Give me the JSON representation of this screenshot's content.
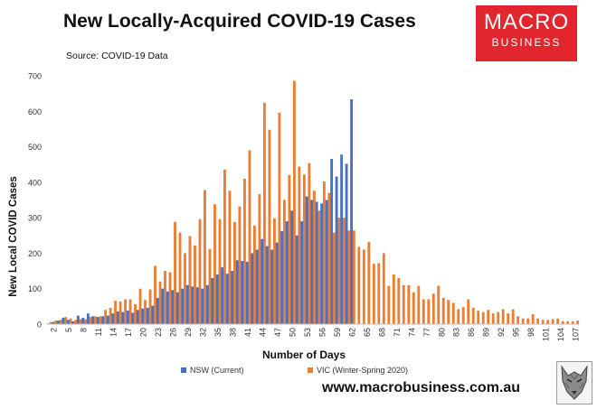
{
  "header": {
    "title": "New Locally-Acquired COVID-19 Cases",
    "source": "Source: COVID-19 Data"
  },
  "logo": {
    "line1": "MACRO",
    "line2": "BUSINESS"
  },
  "footer": {
    "url": "www.macrobusiness.com.au"
  },
  "colors": {
    "nsw": "#4472c4",
    "vic": "#ed7d31",
    "logo_bg": "#e1262d"
  },
  "chart_data": {
    "type": "bar",
    "title": "New Locally-Acquired COVID-19 Cases",
    "xlabel": "Number of Days",
    "ylabel": "New Local COVID Cases",
    "ylim": [
      0,
      700
    ],
    "yticks": [
      0,
      100,
      200,
      300,
      400,
      500,
      600,
      700
    ],
    "xlim": [
      1,
      107
    ],
    "xticks": [
      2,
      5,
      8,
      11,
      14,
      17,
      20,
      23,
      26,
      29,
      32,
      35,
      38,
      41,
      44,
      47,
      50,
      53,
      56,
      59,
      62,
      65,
      68,
      71,
      74,
      77,
      80,
      83,
      86,
      89,
      92,
      95,
      98,
      101,
      104,
      107
    ],
    "legend": "bottom",
    "grid": false,
    "series": [
      {
        "name": "NSW (Current)",
        "x_start": 1,
        "values": [
          2,
          6,
          10,
          18,
          12,
          8,
          24,
          18,
          30,
          22,
          20,
          22,
          24,
          30,
          36,
          34,
          38,
          32,
          40,
          44,
          46,
          52,
          74,
          100,
          92,
          96,
          90,
          100,
          110,
          106,
          104,
          100,
          110,
          130,
          140,
          160,
          142,
          150,
          180,
          178,
          176,
          200,
          210,
          240,
          220,
          210,
          230,
          262,
          290,
          320,
          250,
          290,
          360,
          350,
          345,
          340,
          350,
          466,
          416,
          478,
          452,
          634
        ]
      },
      {
        "name": "VIC (Winter-Spring 2020)",
        "x_start": 1,
        "values": [
          6,
          10,
          12,
          20,
          16,
          12,
          14,
          14,
          20,
          22,
          22,
          40,
          46,
          66,
          64,
          70,
          70,
          56,
          100,
          68,
          98,
          164,
          120,
          150,
          146,
          288,
          258,
          200,
          248,
          222,
          296,
          378,
          212,
          338,
          296,
          436,
          376,
          288,
          332,
          410,
          490,
          278,
          366,
          624,
          548,
          298,
          596,
          350,
          420,
          686,
          444,
          422,
          454,
          376,
          320,
          402,
          370,
          258,
          300,
          300,
          264,
          264,
          218,
          210,
          232,
          170,
          172,
          200,
          108,
          140,
          130,
          110,
          110,
          90,
          108,
          70,
          70,
          86,
          108,
          74,
          68,
          60,
          42,
          48,
          70,
          46,
          38,
          34,
          40,
          30,
          34,
          42,
          30,
          42,
          22,
          16,
          16,
          28,
          16,
          12,
          12,
          14,
          16,
          8,
          8,
          8,
          10
        ]
      }
    ]
  }
}
